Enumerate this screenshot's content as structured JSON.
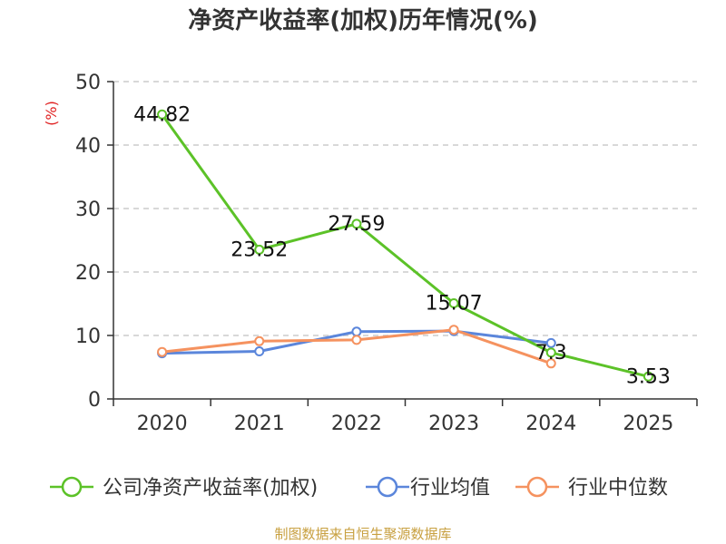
{
  "chart_data": {
    "type": "line",
    "title": "净资产收益率(加权)历年情况(%)",
    "ylabel": "(%)",
    "xlabel": "",
    "categories": [
      "2020",
      "2021",
      "2022",
      "2023",
      "2024",
      "2025"
    ],
    "ylim": [
      0,
      50
    ],
    "yticks": [
      0,
      10,
      20,
      30,
      40,
      50
    ],
    "grid": true,
    "legend_position": "bottom",
    "series": [
      {
        "name": "公司净资产收益率(加权)",
        "color": "#5cc228",
        "values": [
          44.82,
          23.52,
          27.59,
          15.07,
          7.3,
          3.53
        ],
        "labels": [
          "44.82",
          "23.52",
          "27.59",
          "15.07",
          "7.3",
          "3.53"
        ]
      },
      {
        "name": "行业均值",
        "color": "#5b86db",
        "values": [
          7.2,
          7.5,
          10.6,
          10.7,
          8.8,
          null
        ]
      },
      {
        "name": "行业中位数",
        "color": "#f5925f",
        "values": [
          7.4,
          9.1,
          9.3,
          10.9,
          5.6,
          null
        ]
      }
    ],
    "source": "制图数据来自恒生聚源数据库"
  }
}
